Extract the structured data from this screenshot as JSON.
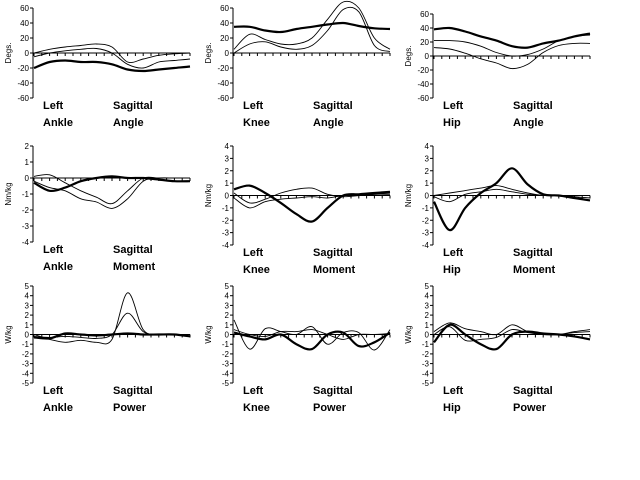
{
  "chart_data": [
    {
      "type": "line",
      "panel": "left-ankle-sagittal-angle",
      "ylabel": "Degs.",
      "ylim": [
        -60,
        60
      ],
      "yticks": [
        60,
        40,
        20,
        0,
        -20,
        -40,
        -60
      ],
      "caption": [
        [
          "Left",
          "Ankle"
        ],
        [
          "Sagittal",
          "Angle"
        ]
      ],
      "x": [
        0,
        10,
        20,
        30,
        40,
        50,
        60,
        70,
        80,
        90,
        100
      ],
      "series": [
        {
          "style": "bold",
          "values": [
            -20,
            -12,
            -10,
            -12,
            -12,
            -15,
            -22,
            -24,
            -22,
            -20,
            -18
          ]
        },
        {
          "style": "thin",
          "values": [
            0,
            5,
            8,
            10,
            12,
            8,
            -12,
            -8,
            -3,
            -1,
            0
          ]
        },
        {
          "style": "thin",
          "values": [
            -5,
            0,
            3,
            5,
            6,
            0,
            -15,
            -20,
            -12,
            -10,
            -8
          ]
        }
      ]
    },
    {
      "type": "line",
      "panel": "left-knee-sagittal-angle",
      "ylabel": "Degs.",
      "ylim": [
        -60,
        60
      ],
      "yticks": [
        60,
        40,
        20,
        0,
        -20,
        -40,
        -60
      ],
      "caption": [
        [
          "Left",
          "Knee"
        ],
        [
          "Sagittal",
          "Angle"
        ]
      ],
      "x": [
        0,
        10,
        20,
        30,
        40,
        50,
        60,
        70,
        80,
        90,
        100
      ],
      "series": [
        {
          "style": "bold",
          "values": [
            35,
            35,
            30,
            28,
            32,
            35,
            38,
            40,
            36,
            33,
            32
          ]
        },
        {
          "style": "thin",
          "values": [
            5,
            25,
            18,
            12,
            12,
            20,
            45,
            68,
            60,
            20,
            5
          ]
        },
        {
          "style": "thin",
          "values": [
            0,
            12,
            15,
            8,
            5,
            10,
            30,
            58,
            55,
            10,
            2
          ]
        }
      ]
    },
    {
      "type": "line",
      "panel": "left-hip-sagittal-angle",
      "ylabel": "Degs.",
      "ylim": [
        -60,
        60
      ],
      "yticks": [
        60,
        40,
        20,
        0,
        -20,
        -40,
        -60
      ],
      "caption": [
        [
          "Left",
          "Hip"
        ],
        [
          "Sagittal",
          "Angle"
        ]
      ],
      "x": [
        0,
        10,
        20,
        30,
        40,
        50,
        60,
        70,
        80,
        90,
        100
      ],
      "series": [
        {
          "style": "bold",
          "values": [
            38,
            40,
            35,
            28,
            22,
            14,
            12,
            18,
            22,
            28,
            32
          ]
        },
        {
          "style": "thin",
          "values": [
            22,
            22,
            20,
            14,
            5,
            0,
            2,
            10,
            22,
            28,
            30
          ]
        },
        {
          "style": "thin",
          "values": [
            12,
            10,
            4,
            -4,
            -10,
            -18,
            -12,
            5,
            15,
            18,
            18
          ]
        }
      ]
    },
    {
      "type": "line",
      "panel": "left-ankle-sagittal-moment",
      "ylabel": "Nm/kg",
      "ylim": [
        -4,
        2
      ],
      "yticks": [
        2,
        1,
        0,
        -1,
        -2,
        -3,
        -4
      ],
      "caption": [
        [
          "Left",
          "Ankle"
        ],
        [
          "Sagittal",
          "Moment"
        ]
      ],
      "x": [
        0,
        10,
        20,
        30,
        40,
        50,
        60,
        70,
        80,
        90,
        100
      ],
      "series": [
        {
          "style": "bold",
          "values": [
            -0.3,
            -0.8,
            -0.6,
            -0.2,
            0,
            0.1,
            0,
            0,
            -0.1,
            -0.2,
            -0.2
          ]
        },
        {
          "style": "thin",
          "values": [
            0.1,
            0.2,
            -0.3,
            -0.8,
            -1.2,
            -1.6,
            -0.8,
            0,
            0,
            0,
            0
          ]
        },
        {
          "style": "thin",
          "values": [
            -0.2,
            -0.6,
            -0.8,
            -1.3,
            -1.5,
            -1.9,
            -1.3,
            -0.2,
            0,
            0,
            0
          ]
        }
      ]
    },
    {
      "type": "line",
      "panel": "left-knee-sagittal-moment",
      "ylabel": "Nm/kg",
      "ylim": [
        -4,
        4
      ],
      "yticks": [
        4,
        3,
        2,
        1,
        0,
        -1,
        -2,
        -3,
        -4
      ],
      "caption": [
        [
          "Left",
          "Knee"
        ],
        [
          "Sagittal",
          "Moment"
        ]
      ],
      "x": [
        0,
        10,
        20,
        30,
        40,
        50,
        60,
        70,
        80,
        90,
        100
      ],
      "series": [
        {
          "style": "bold",
          "values": [
            0.5,
            0.8,
            0.2,
            -0.6,
            -1.5,
            -2.1,
            -1.0,
            0,
            0.1,
            0.2,
            0.3
          ]
        },
        {
          "style": "thin",
          "values": [
            0.2,
            -0.6,
            -0.3,
            0.2,
            0.5,
            0.6,
            0.1,
            -0.1,
            0,
            0.1,
            0.2
          ]
        },
        {
          "style": "thin",
          "values": [
            -0.2,
            -1.0,
            -0.5,
            -0.3,
            -0.2,
            -0.1,
            -0.2,
            0,
            0,
            0.1,
            0.1
          ]
        }
      ]
    },
    {
      "type": "line",
      "panel": "left-hip-sagittal-moment",
      "ylabel": "Nm/kg",
      "ylim": [
        -4,
        4
      ],
      "yticks": [
        4,
        3,
        2,
        1,
        0,
        -1,
        -2,
        -3,
        -4
      ],
      "caption": [
        [
          "Left",
          "Hip"
        ],
        [
          "Sagittal",
          "Moment"
        ]
      ],
      "x": [
        0,
        10,
        20,
        30,
        40,
        50,
        60,
        70,
        80,
        90,
        100
      ],
      "series": [
        {
          "style": "bold",
          "values": [
            -0.5,
            -2.8,
            -1.0,
            0.2,
            1.0,
            2.2,
            0.9,
            0.1,
            0,
            -0.2,
            -0.4
          ]
        },
        {
          "style": "thin",
          "values": [
            0,
            0.2,
            0.4,
            0.6,
            0.8,
            0.5,
            0.2,
            0,
            0,
            -0.2,
            -0.4
          ]
        },
        {
          "style": "thin",
          "values": [
            -0.1,
            -0.5,
            0.1,
            0.3,
            0.5,
            0.3,
            0.1,
            0,
            0,
            -0.1,
            -0.2
          ]
        }
      ]
    },
    {
      "type": "line",
      "panel": "left-ankle-sagittal-power",
      "ylabel": "W/kg",
      "ylim": [
        -5,
        5
      ],
      "yticks": [
        5,
        4,
        3,
        2,
        1,
        0,
        -1,
        -2,
        -3,
        -4,
        -5
      ],
      "caption": [
        [
          "Left",
          "Ankle"
        ],
        [
          "Sagittal",
          "Power"
        ]
      ],
      "x": [
        0,
        10,
        20,
        30,
        40,
        50,
        60,
        70,
        80,
        90,
        100
      ],
      "series": [
        {
          "style": "bold",
          "values": [
            -0.3,
            -0.4,
            0.1,
            0,
            -0.1,
            0,
            0.1,
            0,
            0,
            0,
            -0.2
          ]
        },
        {
          "style": "thin",
          "values": [
            0,
            -0.5,
            -0.8,
            -0.6,
            -0.8,
            -0.5,
            4.3,
            0.5,
            0,
            0,
            0
          ]
        },
        {
          "style": "thin",
          "values": [
            -0.2,
            -0.3,
            -0.2,
            -0.3,
            -0.4,
            0,
            2.2,
            0.3,
            0,
            0,
            0
          ]
        }
      ]
    },
    {
      "type": "line",
      "panel": "left-knee-sagittal-power",
      "ylabel": "W/kg",
      "ylim": [
        -5,
        5
      ],
      "yticks": [
        5,
        4,
        3,
        2,
        1,
        0,
        -1,
        -2,
        -3,
        -4,
        -5
      ],
      "caption": [
        [
          "Left",
          "Knee"
        ],
        [
          "Sagittal",
          "Power"
        ]
      ],
      "x": [
        0,
        10,
        20,
        30,
        40,
        50,
        60,
        70,
        80,
        90,
        100
      ],
      "series": [
        {
          "style": "bold",
          "values": [
            0.2,
            -0.2,
            -0.5,
            0,
            -1.0,
            -1.5,
            0,
            0.2,
            -1.2,
            -0.8,
            0.2
          ]
        },
        {
          "style": "thin",
          "values": [
            1.5,
            -1.5,
            0.6,
            0.3,
            0,
            0.8,
            -1.0,
            0.2,
            0.2,
            -1.6,
            0.5
          ]
        },
        {
          "style": "thin",
          "values": [
            0.5,
            0,
            -0.2,
            0.3,
            0.3,
            0.5,
            0,
            -0.5,
            0,
            0,
            0.1
          ]
        }
      ]
    },
    {
      "type": "line",
      "panel": "left-hip-sagittal-power",
      "ylabel": "W/kg",
      "ylim": [
        -5,
        5
      ],
      "yticks": [
        5,
        4,
        3,
        2,
        1,
        0,
        -1,
        -2,
        -3,
        -4,
        -5
      ],
      "caption": [
        [
          "Left",
          "Hip"
        ],
        [
          "Sagittal",
          "Power"
        ]
      ],
      "x": [
        0,
        10,
        20,
        30,
        40,
        50,
        60,
        70,
        80,
        90,
        100
      ],
      "series": [
        {
          "style": "bold",
          "values": [
            -0.8,
            1.0,
            0,
            -1.0,
            -1.5,
            0,
            0.3,
            0.1,
            0,
            -0.2,
            -0.5
          ]
        },
        {
          "style": "thin",
          "values": [
            0.3,
            1.2,
            0.6,
            0.3,
            0,
            1.0,
            0.3,
            0,
            0,
            0.3,
            0.5
          ]
        },
        {
          "style": "thin",
          "values": [
            0,
            0.8,
            -0.6,
            -0.5,
            -0.3,
            0.5,
            0.2,
            0,
            0,
            0.2,
            0.3
          ]
        }
      ]
    }
  ]
}
